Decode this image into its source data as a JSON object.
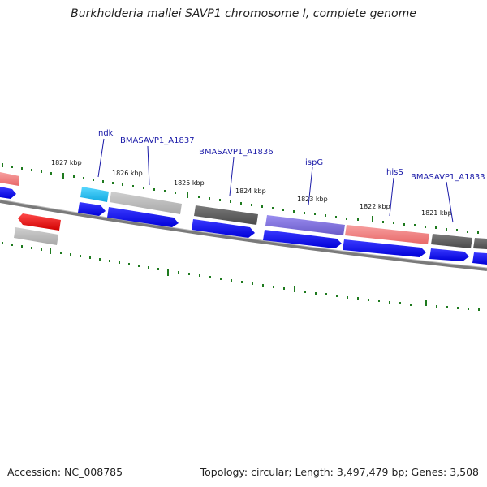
{
  "title": "Burkholderia mallei SAVP1 chromosome I, complete genome",
  "footer": {
    "accession": "Accession: NC_008785",
    "summary": "Topology: circular; Length: 3,497,479 bp; Genes: 3,508"
  },
  "ticks": [
    "1827 kbp",
    "1826 kbp",
    "1825 kbp",
    "1824 kbp",
    "1823 kbp",
    "1822 kbp",
    "1821 kbp"
  ],
  "gene_labels": [
    "ndk",
    "BMASAVP1_A1837",
    "BMASAVP1_A1836",
    "ispG",
    "hisS",
    "BMASAVP1_A1833"
  ],
  "colors": {
    "backbone": "#7a7a7a",
    "tick": "#1e7a1e",
    "cds": "#0a0af0",
    "gene_red": "#f07878",
    "gene_gray": "#b4b4b4",
    "gene_dark": "#5a5a5a",
    "gene_cyan": "#18c0f0",
    "gene_purple": "#7a6ad8",
    "gene_strong_red": "#ee1010",
    "label": "#1a1aa8"
  }
}
